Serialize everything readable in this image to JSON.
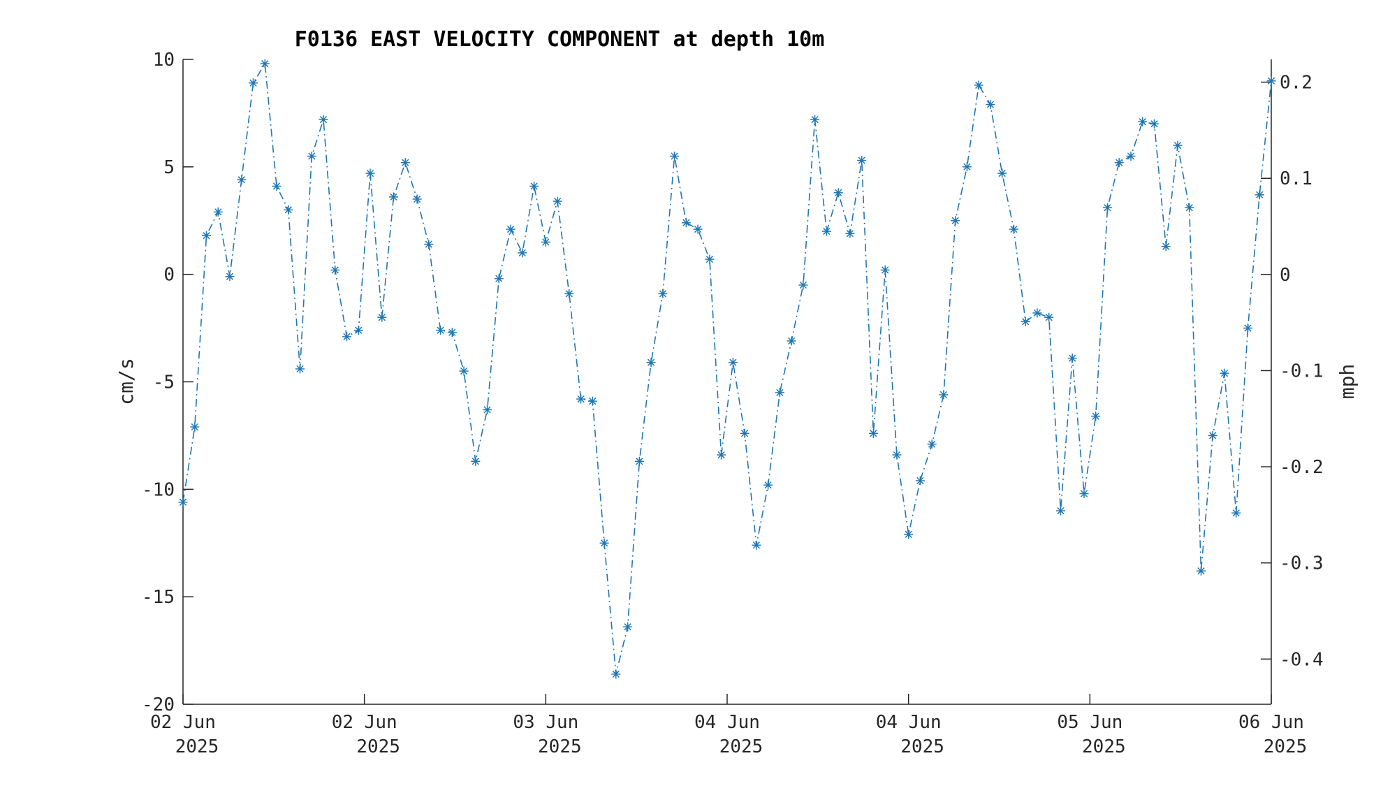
{
  "chart_data": {
    "type": "line",
    "title": "F0136 EAST VELOCITY COMPONENT at depth 10m",
    "ylabel": "cm/s",
    "y2label": "mph",
    "ylim": [
      -20,
      10
    ],
    "y2lim": [
      -0.447,
      0.2237
    ],
    "yticks": [
      "10",
      "5",
      "0",
      "-5",
      "-10",
      "-15",
      "-20"
    ],
    "y2ticks": [
      "0.2",
      "0.1",
      "0",
      "-0.1",
      "-0.2",
      "-0.3",
      "-0.4"
    ],
    "xtick_labels": [
      [
        "02 Jun",
        "2025"
      ],
      [
        "02 Jun",
        "2025"
      ],
      [
        "03 Jun",
        "2025"
      ],
      [
        "04 Jun",
        "2025"
      ],
      [
        "04 Jun",
        "2025"
      ],
      [
        "05 Jun",
        "2025"
      ],
      [
        "06 Jun",
        "2025"
      ]
    ],
    "line_style": "dash-dot",
    "marker": "asterisk",
    "grid": false,
    "colors": {
      "series": "#1f77b4",
      "axis": "#262626"
    },
    "series": [
      {
        "values": [
          -10.6,
          -7.1,
          1.8,
          2.9,
          -0.1,
          4.4,
          8.9,
          9.8,
          4.1,
          3.0,
          -4.4,
          5.5,
          7.2,
          0.2,
          -2.9,
          -2.6,
          4.7,
          -2.0,
          3.6,
          5.2,
          3.5,
          1.4,
          -2.6,
          -2.7,
          -4.5,
          -8.7,
          -6.3,
          -0.2,
          2.1,
          1.0,
          4.1,
          1.5,
          3.4,
          -0.9,
          -5.8,
          -5.9,
          -12.5,
          -18.6,
          -16.4,
          -8.7,
          -4.1,
          -0.9,
          5.5,
          2.4,
          2.1,
          0.7,
          -8.4,
          -4.1,
          -7.4,
          -12.6,
          -9.8,
          -5.5,
          -3.1,
          -0.5,
          7.2,
          2.0,
          3.8,
          1.9,
          5.3,
          -7.4,
          0.2,
          -8.4,
          -12.1,
          -9.6,
          -7.9,
          -5.6,
          2.5,
          5.0,
          8.8,
          7.9,
          4.7,
          2.1,
          -2.2,
          -1.8,
          -2.0,
          -11.0,
          -3.9,
          -10.2,
          -6.6,
          3.1,
          5.2,
          5.5,
          7.1,
          7.0,
          1.3,
          6.0,
          3.1,
          -13.8,
          -7.5,
          -4.6,
          -11.1,
          -2.5,
          3.7,
          9.0
        ]
      }
    ]
  }
}
